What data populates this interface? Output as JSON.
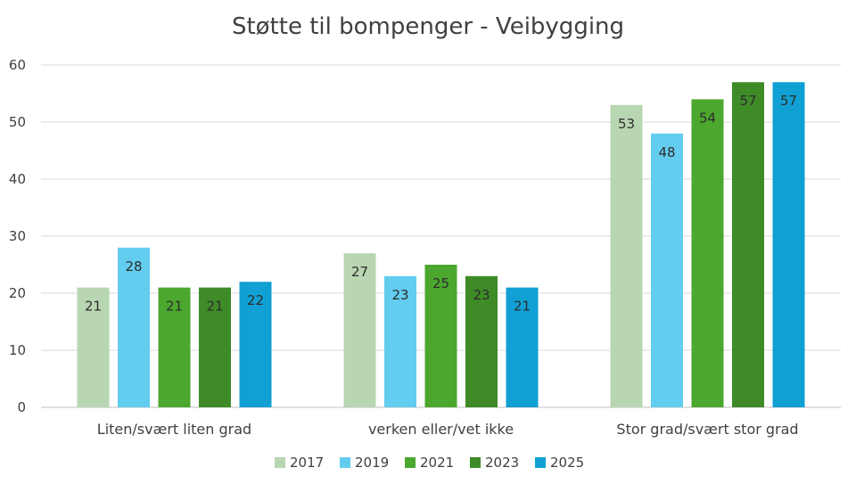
{
  "chart_data": {
    "type": "bar",
    "title": "Støtte til bompenger - Veibygging",
    "xlabel": "",
    "ylabel": "",
    "categories": [
      "Liten/svært liten grad",
      "verken eller/vet ikke",
      "Stor grad/svært stor grad"
    ],
    "series": [
      {
        "name": "2017",
        "color": "#b9d6b2",
        "values": [
          21,
          27,
          53
        ]
      },
      {
        "name": "2019",
        "color": "#63cdf0",
        "values": [
          28,
          23,
          48
        ]
      },
      {
        "name": "2021",
        "color": "#4ba72e",
        "values": [
          21,
          25,
          54
        ]
      },
      {
        "name": "2023",
        "color": "#3e8b27",
        "values": [
          21,
          23,
          57
        ]
      },
      {
        "name": "2025",
        "color": "#10a0d4",
        "values": [
          22,
          21,
          57
        ]
      }
    ],
    "ylim": [
      0,
      60
    ],
    "yticks": [
      0,
      10,
      20,
      30,
      40,
      50,
      60
    ],
    "grid": true,
    "legend_position": "bottom"
  }
}
